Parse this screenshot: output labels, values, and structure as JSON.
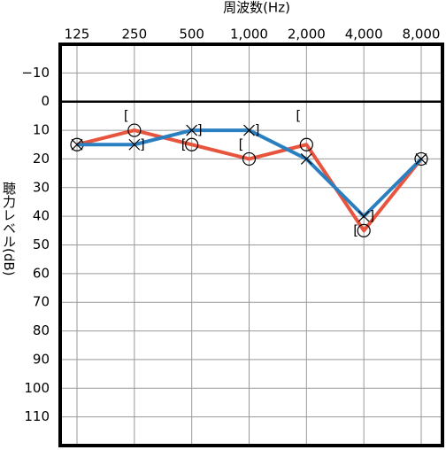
{
  "chart_data": {
    "type": "line",
    "title": "周波数(Hz)",
    "y_label": "聴力レベル(dB)",
    "categories": [
      "125",
      "250",
      "500",
      "1,000",
      "2,000",
      "4,000",
      "8,000"
    ],
    "ylim": [
      -20,
      120
    ],
    "y_reversed": true,
    "yticks": [
      {
        "value": -10,
        "label": "−10"
      },
      0,
      10,
      20,
      30,
      40,
      50,
      60,
      70,
      80,
      90,
      100,
      110
    ],
    "grid": true,
    "series": [
      {
        "color": "#e8553e",
        "marker": "circle",
        "values": [
          15,
          10,
          15,
          20,
          15,
          45,
          20
        ]
      },
      {
        "color": "#2a7fc0",
        "marker": "cross",
        "values": [
          15,
          15,
          10,
          10,
          20,
          40,
          20
        ]
      },
      {
        "color": "#000000",
        "marker": "[",
        "values": [
          null,
          5,
          15,
          15,
          5,
          45,
          null
        ]
      },
      {
        "color": "#000000",
        "marker": "]",
        "values": [
          null,
          15,
          10,
          10,
          null,
          40,
          null
        ]
      }
    ]
  }
}
